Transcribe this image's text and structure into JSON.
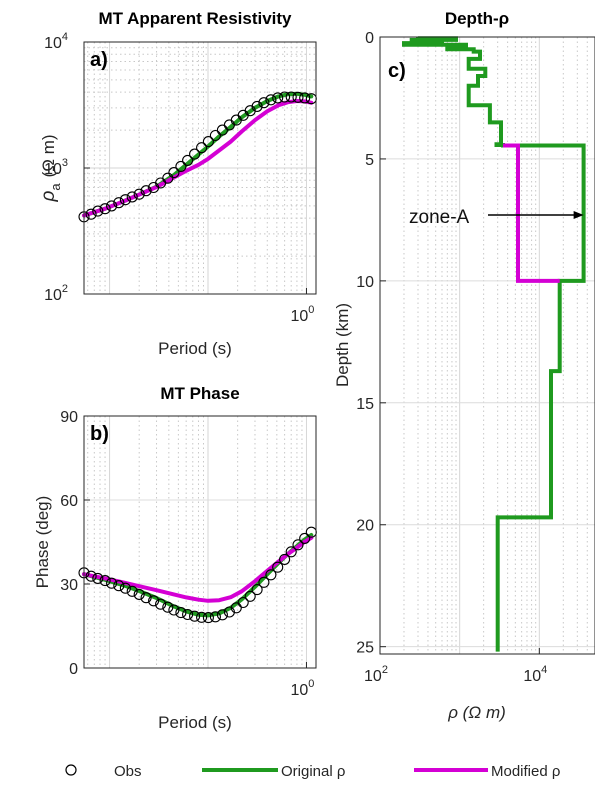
{
  "chart_data": [
    {
      "id": "a",
      "type": "line",
      "panel_label": "a)",
      "title": "MT Apparent Resistivity",
      "xlabel": "Period (s)",
      "ylabel_main": "ρ",
      "ylabel_sub": "a",
      "ylabel_unit": "(Ω m)",
      "xscale": "log",
      "yscale": "log",
      "xlim": [
        0.0055,
        1.25
      ],
      "ylim": [
        100,
        10000
      ],
      "x_ticks": [
        {
          "value": 1,
          "label": "10",
          "exp": "0"
        }
      ],
      "y_ticks": [
        {
          "value": 100,
          "label": "10",
          "exp": "2"
        },
        {
          "value": 1000,
          "label": "10",
          "exp": "3"
        },
        {
          "value": 10000,
          "label": "10",
          "exp": "4"
        }
      ],
      "grid": true,
      "series": [
        {
          "name": "Obs",
          "style": "markers",
          "color": "#000000",
          "x": [
            0.0055,
            0.0065,
            0.0076,
            0.009,
            0.0105,
            0.0124,
            0.0145,
            0.017,
            0.02,
            0.0235,
            0.028,
            0.033,
            0.039,
            0.045,
            0.053,
            0.062,
            0.073,
            0.086,
            0.101,
            0.119,
            0.14,
            0.165,
            0.194,
            0.228,
            0.268,
            0.315,
            0.37,
            0.435,
            0.51,
            0.6,
            0.7,
            0.82,
            0.96,
            1.12
          ],
          "y": [
            410,
            430,
            455,
            475,
            500,
            530,
            560,
            590,
            620,
            660,
            700,
            760,
            830,
            920,
            1030,
            1150,
            1290,
            1450,
            1620,
            1810,
            2000,
            2200,
            2400,
            2620,
            2850,
            3080,
            3300,
            3480,
            3600,
            3660,
            3660,
            3640,
            3600,
            3550
          ]
        },
        {
          "name": "Original ρ",
          "style": "line",
          "color": "#1f9a1f",
          "x": [
            0.0055,
            0.009,
            0.014,
            0.02,
            0.03,
            0.045,
            0.06,
            0.08,
            0.1,
            0.13,
            0.17,
            0.22,
            0.3,
            0.4,
            0.52,
            0.65,
            0.8,
            0.95,
            1.12
          ],
          "y": [
            420,
            475,
            545,
            615,
            710,
            880,
            1060,
            1280,
            1480,
            1780,
            2120,
            2520,
            3000,
            3400,
            3700,
            3850,
            3880,
            3820,
            3700
          ]
        },
        {
          "name": "Modified ρ",
          "style": "line",
          "color": "#d400d4",
          "x": [
            0.0055,
            0.009,
            0.014,
            0.02,
            0.03,
            0.045,
            0.06,
            0.08,
            0.1,
            0.13,
            0.17,
            0.22,
            0.3,
            0.4,
            0.52,
            0.65,
            0.8,
            0.95,
            1.12
          ],
          "y": [
            420,
            475,
            545,
            615,
            705,
            840,
            950,
            1060,
            1180,
            1380,
            1620,
            1950,
            2400,
            2820,
            3150,
            3330,
            3400,
            3380,
            3300
          ]
        }
      ]
    },
    {
      "id": "b",
      "type": "line",
      "panel_label": "b)",
      "title": "MT Phase",
      "xlabel": "Period (s)",
      "ylabel": "Phase (deg)",
      "xscale": "log",
      "xlim": [
        0.0055,
        1.25
      ],
      "ylim": [
        0,
        90
      ],
      "x_ticks": [
        {
          "value": 1,
          "label": "10",
          "exp": "0"
        }
      ],
      "y_ticks": [
        {
          "value": 0,
          "label": "0"
        },
        {
          "value": 30,
          "label": "30"
        },
        {
          "value": 60,
          "label": "60"
        },
        {
          "value": 90,
          "label": "90"
        }
      ],
      "grid": true,
      "series": [
        {
          "name": "Obs",
          "style": "markers",
          "color": "#000000",
          "x": [
            0.0055,
            0.0065,
            0.0076,
            0.009,
            0.0105,
            0.0124,
            0.0145,
            0.017,
            0.02,
            0.0235,
            0.028,
            0.033,
            0.039,
            0.045,
            0.053,
            0.062,
            0.073,
            0.086,
            0.101,
            0.119,
            0.14,
            0.165,
            0.194,
            0.228,
            0.268,
            0.315,
            0.37,
            0.435,
            0.51,
            0.6,
            0.7,
            0.82,
            0.96,
            1.12
          ],
          "y": [
            34,
            32.8,
            32,
            31.2,
            30.3,
            29.4,
            28.5,
            27.4,
            26.3,
            25.1,
            24,
            22.8,
            21.7,
            20.7,
            19.8,
            19.1,
            18.5,
            18.1,
            18,
            18.3,
            19,
            20,
            21.5,
            23.4,
            25.6,
            28,
            30.6,
            33.3,
            36,
            38.8,
            41.5,
            44,
            46.3,
            48.5
          ]
        },
        {
          "name": "Original ρ",
          "style": "line",
          "color": "#1f9a1f",
          "x": [
            0.0055,
            0.009,
            0.014,
            0.02,
            0.03,
            0.045,
            0.06,
            0.08,
            0.1,
            0.13,
            0.17,
            0.22,
            0.3,
            0.4,
            0.52,
            0.65,
            0.8,
            0.95,
            1.12
          ],
          "y": [
            33.5,
            31.5,
            29.5,
            27.5,
            25,
            22,
            20.2,
            19,
            18.8,
            19.5,
            21.5,
            24.5,
            29,
            33.5,
            37.5,
            40.8,
            43.5,
            45.8,
            47.5
          ]
        },
        {
          "name": "Modified ρ",
          "style": "line",
          "color": "#d400d4",
          "x": [
            0.0055,
            0.009,
            0.014,
            0.02,
            0.03,
            0.045,
            0.06,
            0.08,
            0.1,
            0.13,
            0.17,
            0.22,
            0.3,
            0.4,
            0.52,
            0.65,
            0.8,
            0.95,
            1.12
          ],
          "y": [
            33.5,
            32,
            30.5,
            29.2,
            27.8,
            26.3,
            25.2,
            24.4,
            24,
            24.2,
            25.3,
            27.4,
            31,
            34.7,
            38,
            40.7,
            43,
            45,
            46.5
          ]
        }
      ]
    },
    {
      "id": "c",
      "type": "line",
      "panel_label": "c)",
      "title": "Depth-ρ",
      "xlabel": "ρ  (Ω m)",
      "ylabel": "Depth (km)",
      "xscale": "log",
      "xlim": [
        100,
        50000
      ],
      "ylim": [
        0,
        25.3
      ],
      "y_reversed": true,
      "x_ticks": [
        {
          "value": 100,
          "label": "10",
          "exp": "2"
        },
        {
          "value": 10000,
          "label": "10",
          "exp": "4"
        }
      ],
      "y_ticks": [
        {
          "value": 0,
          "label": "0"
        },
        {
          "value": 5,
          "label": "5"
        },
        {
          "value": 10,
          "label": "10"
        },
        {
          "value": 15,
          "label": "15"
        },
        {
          "value": 20,
          "label": "20"
        },
        {
          "value": 25,
          "label": "25"
        }
      ],
      "grid": true,
      "annotation": {
        "text": "zone-A",
        "arrow_from": [
          1100,
          7.3
        ],
        "arrow_to": [
          36000,
          7.3
        ]
      },
      "series": [
        {
          "name": "Original ρ",
          "style": "step",
          "color": "#1f9a1f",
          "rho": [
            300,
            900,
            250,
            600,
            200,
            1200,
            700,
            1500,
            1800,
            1300,
            2100,
            1700,
            1300,
            2400,
            3300,
            2900,
            3500,
            36000,
            18000,
            14000,
            12000,
            3000
          ],
          "depth": [
            0.05,
            0.12,
            0.18,
            0.25,
            0.32,
            0.4,
            0.5,
            0.6,
            0.9,
            1.3,
            1.6,
            2.0,
            2.8,
            3.5,
            4.4,
            4.43,
            4.45,
            10.0,
            13.7,
            19.7,
            19.7,
            25.2
          ]
        },
        {
          "name": "Modified ρ",
          "style": "step",
          "color": "#d400d4",
          "rho": [
            5400
          ],
          "depth": [
            4.45,
            10.0
          ]
        }
      ]
    }
  ],
  "legend": [
    {
      "label": "Obs",
      "symbol": "marker"
    },
    {
      "label": "Original ρ",
      "symbol": "line",
      "color": "#1f9a1f"
    },
    {
      "label": "Modified ρ",
      "symbol": "line",
      "color": "#d400d4"
    }
  ]
}
